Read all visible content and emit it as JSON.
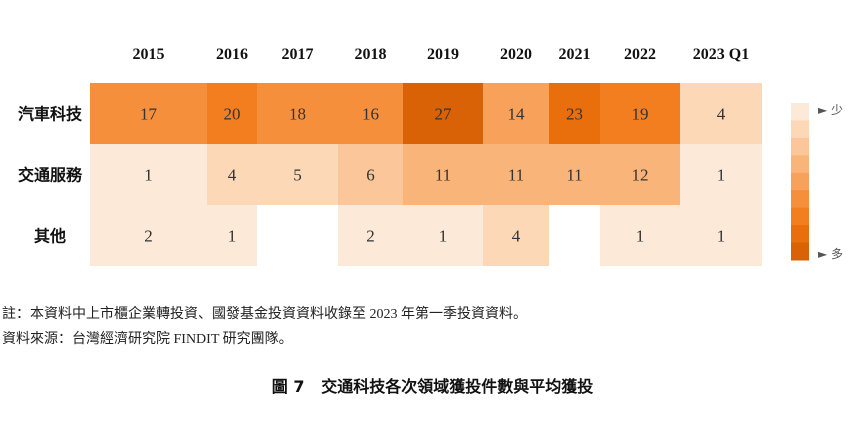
{
  "chart_data": {
    "type": "heatmap",
    "columns": [
      "2015",
      "2016",
      "2017",
      "2018",
      "2019",
      "2020",
      "2021",
      "2022",
      "2023 Q1"
    ],
    "rows": [
      "汽車科技",
      "交通服務",
      "其他"
    ],
    "values": [
      [
        17,
        20,
        18,
        16,
        27,
        14,
        23,
        19,
        4
      ],
      [
        1,
        4,
        5,
        6,
        11,
        11,
        11,
        12,
        1
      ],
      [
        2,
        1,
        null,
        2,
        1,
        4,
        null,
        1,
        1
      ]
    ],
    "legend": {
      "low_label": "少",
      "high_label": "多",
      "low_marker": "►",
      "high_marker": "►"
    },
    "colors": [
      "#fde9d8",
      "#fcd8b7",
      "#fbc79a",
      "#f9b47a",
      "#f8a15a",
      "#f68f3c",
      "#f27e1f",
      "#e96f0c",
      "#d96207"
    ]
  },
  "notes": [
    "註：本資料中上市櫃企業轉投資、國發基金投資資料收錄至 2023 年第一季投資資料。",
    "資料來源：台灣經濟研究院 FINDIT 研究團隊。"
  ],
  "caption": {
    "number": "圖 7",
    "title": "交通科技各次領域獲投件數與平均獲投"
  }
}
